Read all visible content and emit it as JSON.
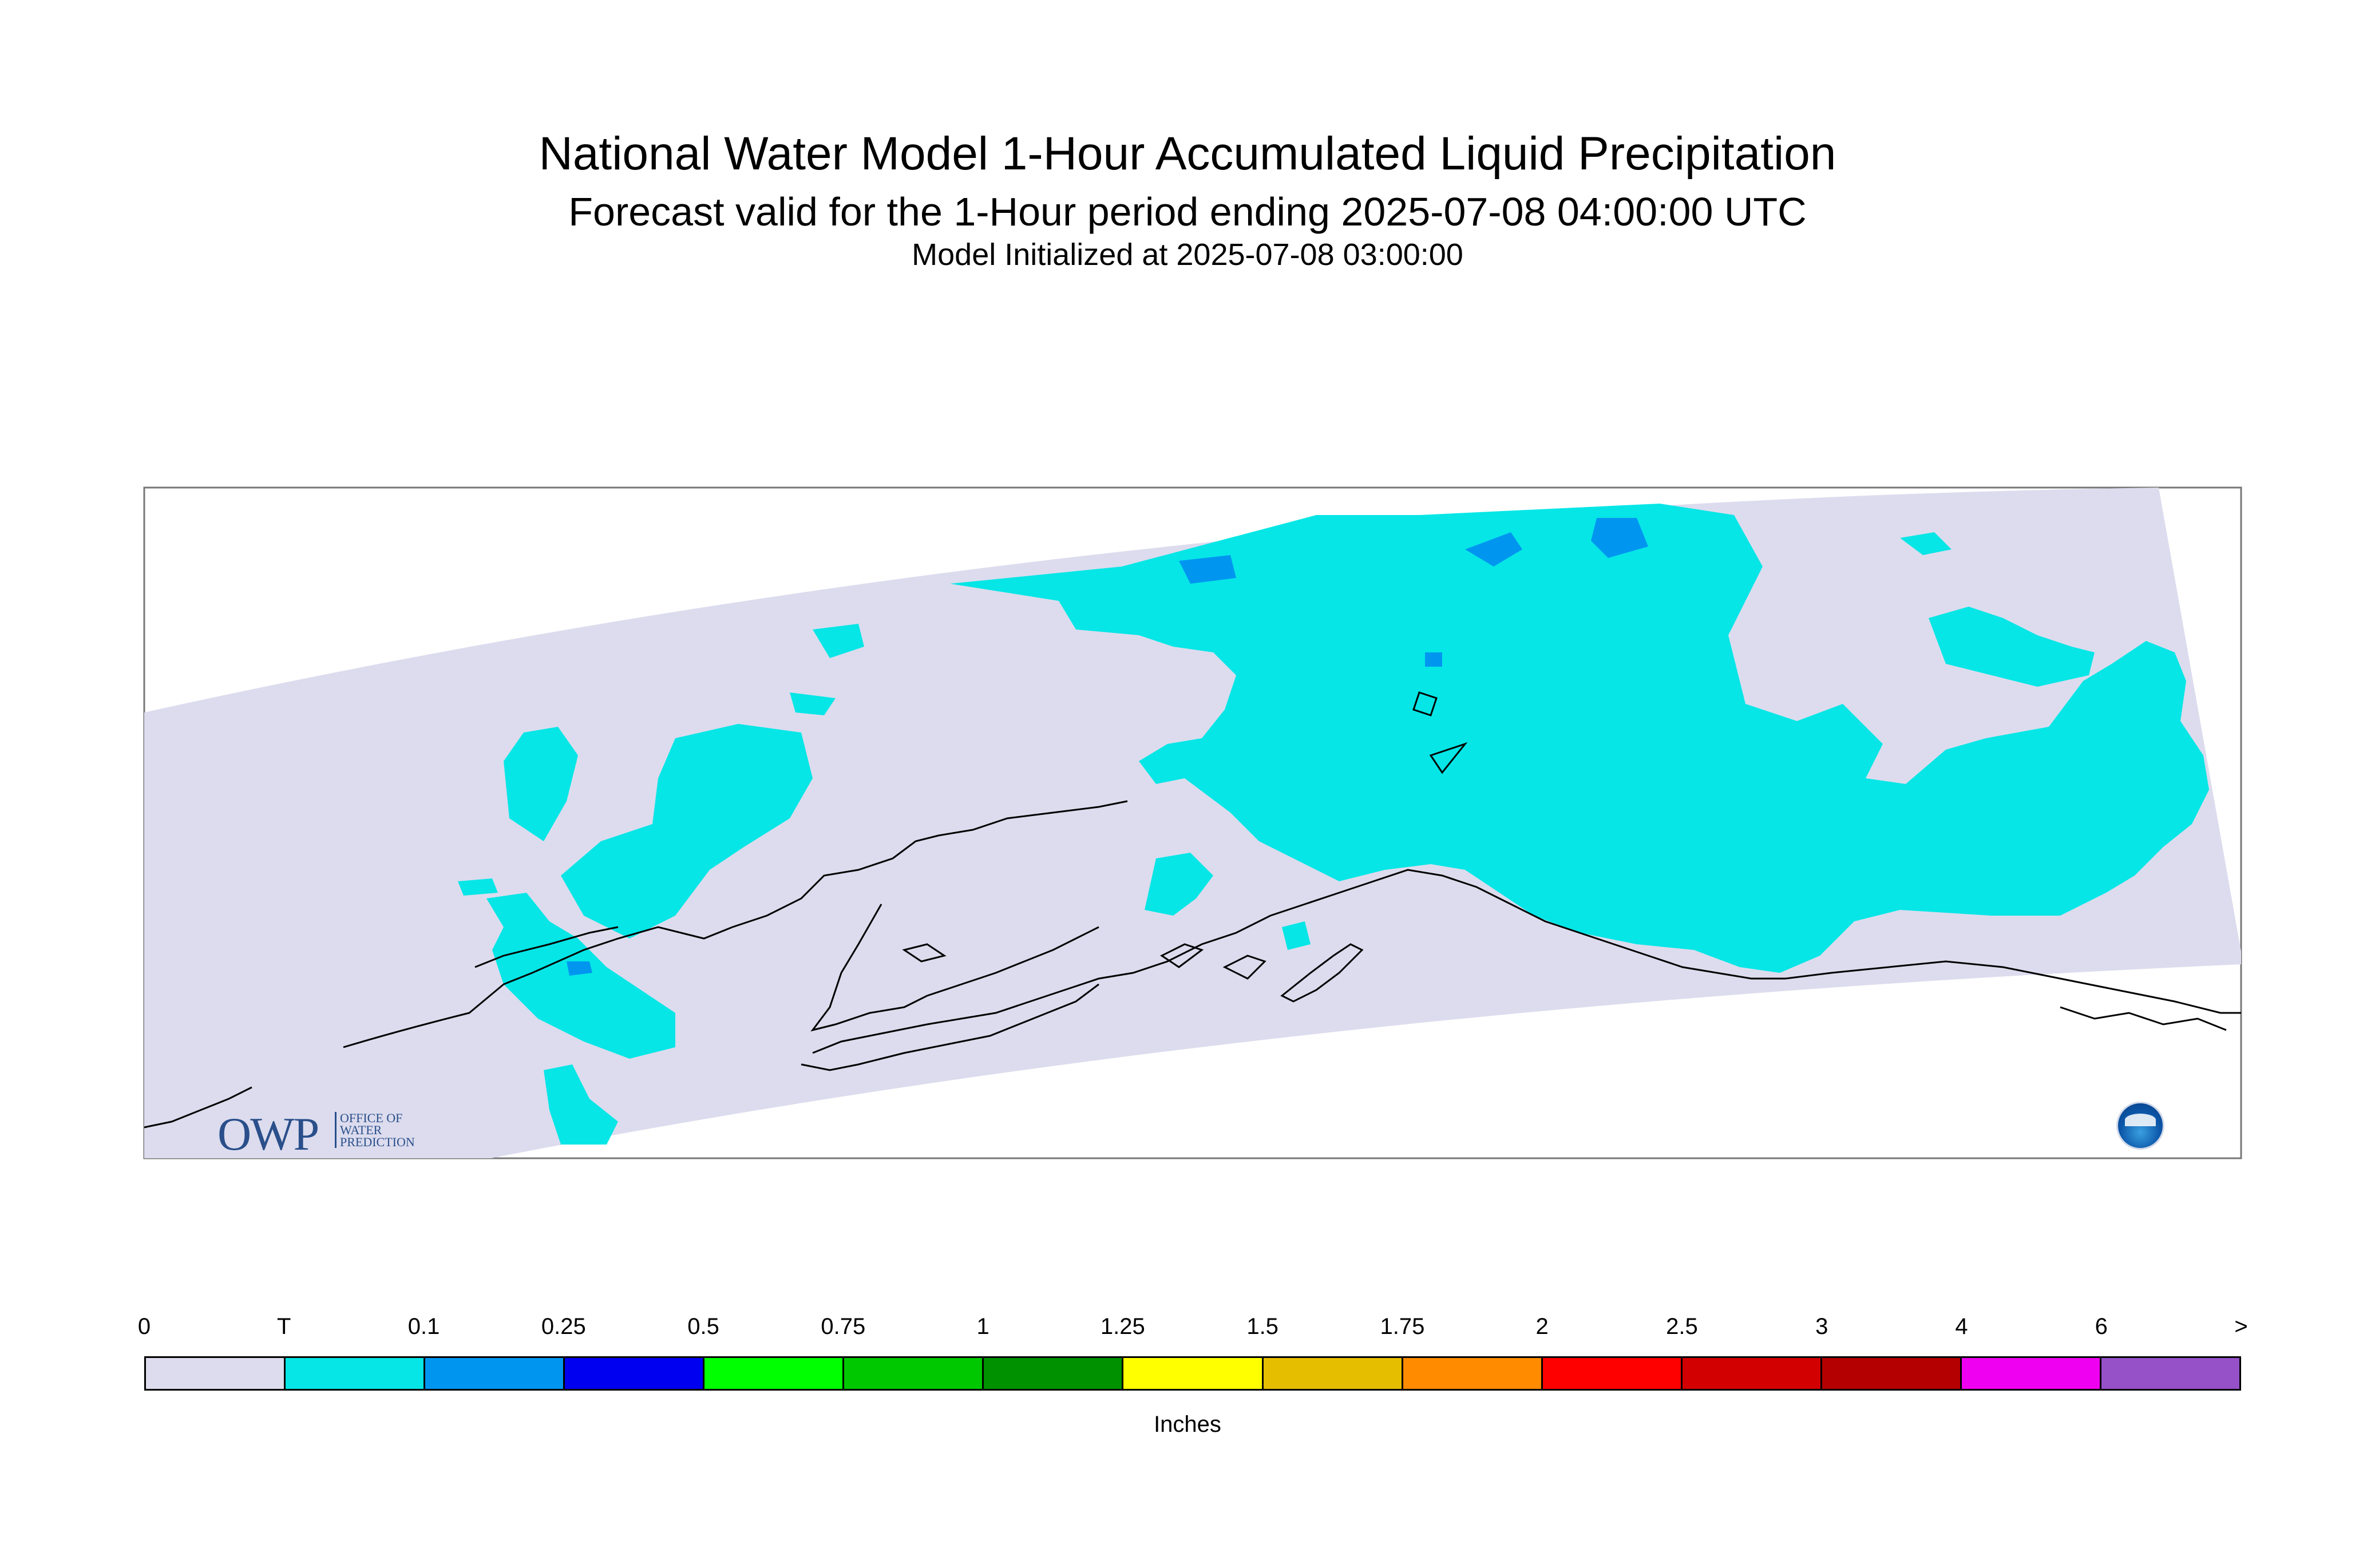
{
  "title": "National Water Model 1-Hour Accumulated Liquid Precipitation",
  "subtitle": "Forecast valid for the 1-Hour period ending 2025-07-08 04:00:00 UTC",
  "init_line": "Model Initialized at 2025-07-08 03:00:00",
  "logo": {
    "owp_text": "OWP",
    "owp_small": [
      "OFFICE OF",
      "WATER",
      "PREDICTION"
    ],
    "noaa_icon": "noaa-logo-icon"
  },
  "colors": {
    "domain_fill": "#dcdcee",
    "trace": "#06e6e6",
    "light_blue": "#0096f0",
    "coast": "#000000"
  },
  "legend": {
    "units": "Inches",
    "ticks": [
      "0",
      "T",
      "0.1",
      "0.25",
      "0.5",
      "0.75",
      "1",
      "1.25",
      "1.5",
      "1.75",
      "2",
      "2.5",
      "3",
      "4",
      "6",
      ">"
    ],
    "colors": [
      "#dcdcee",
      "#06e6e6",
      "#0096f0",
      "#0000f0",
      "#00ff00",
      "#00c800",
      "#009100",
      "#ffff00",
      "#e6be00",
      "#ff8c00",
      "#ff0000",
      "#d20000",
      "#b40000",
      "#f000f0",
      "#9650c8"
    ]
  }
}
